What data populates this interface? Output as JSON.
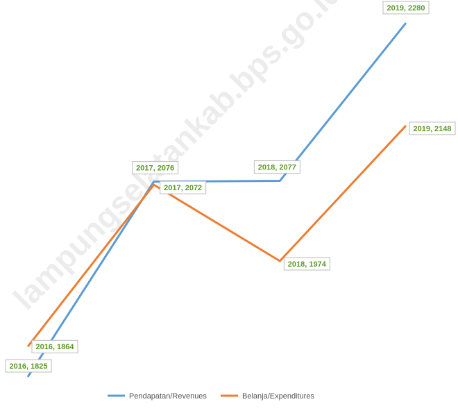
{
  "watermark": "lampungselatankab.bps.go.id",
  "chart_data": {
    "type": "line",
    "categories": [
      "2016",
      "2017",
      "2018",
      "2019"
    ],
    "series": [
      {
        "name": "Pendapatan/Revenues",
        "color": "#5b9bd5",
        "values": [
          1825,
          2076,
          2077,
          2280
        ],
        "value_labels": [
          "2016, 1825",
          "2017, 2076",
          "2018, 2077",
          "2019, 2280"
        ]
      },
      {
        "name": "Belanja/Expenditures",
        "color": "#ed7d31",
        "values": [
          1864,
          2072,
          1974,
          2148
        ],
        "value_labels": [
          "2016, 1864",
          "2017, 2072",
          "2018, 1974",
          "2019, 2148"
        ]
      }
    ],
    "legend": "bottom"
  }
}
